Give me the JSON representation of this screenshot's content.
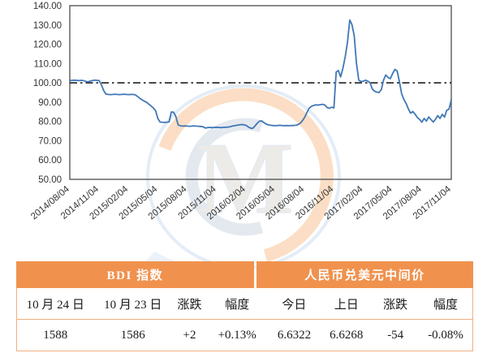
{
  "chart_data": {
    "type": "line",
    "title": "",
    "xlabel": "",
    "ylabel": "",
    "ylim": [
      50,
      140
    ],
    "y_tick_labels": [
      "140.00",
      "130.00",
      "120.00",
      "110.00",
      "100.00",
      "90.00",
      "80.00",
      "70.00",
      "60.00",
      "50.00"
    ],
    "x_tick_labels": [
      "2014/08/04",
      "2014/11/04",
      "2015/02/04",
      "2015/05/04",
      "2015/08/04",
      "2015/11/04",
      "2016/02/04",
      "2016/05/04",
      "2016/08/04",
      "2016/11/04",
      "2017/02/04",
      "2017/05/04",
      "2017/08/04",
      "2017/11/04"
    ],
    "points_per_tick": 13,
    "grid": false,
    "legend": "none",
    "baseline_value": 100,
    "baseline_style": "dash-dot",
    "line_color": "#4077B6",
    "axis_color": "#595959",
    "values": [
      101.2,
      101.3,
      101.4,
      101.3,
      101.2,
      101.3,
      101.2,
      100.8,
      100.5,
      100.9,
      101.2,
      101.4,
      101.3,
      101.2,
      99.0,
      96.0,
      94.2,
      94.0,
      93.9,
      94.0,
      94.1,
      94.0,
      93.9,
      94.0,
      94.1,
      94.0,
      93.9,
      94.0,
      94.0,
      93.8,
      93.0,
      92.0,
      91.2,
      90.5,
      89.9,
      89.0,
      88.0,
      87.0,
      85.6,
      81.5,
      79.7,
      79.6,
      79.5,
      79.6,
      79.8,
      84.9,
      84.8,
      82.5,
      78.2,
      77.7,
      77.6,
      77.7,
      77.6,
      77.5,
      77.6,
      77.7,
      77.6,
      77.5,
      77.4,
      77.3,
      76.6,
      76.8,
      76.9,
      76.8,
      76.9,
      77.0,
      76.9,
      76.8,
      76.9,
      77.0,
      77.1,
      77.3,
      77.6,
      77.8,
      78.0,
      78.2,
      78.4,
      78.3,
      78.0,
      77.2,
      76.6,
      76.4,
      77.6,
      79.0,
      80.1,
      80.3,
      79.4,
      78.6,
      78.2,
      78.0,
      77.9,
      77.8,
      77.9,
      78.0,
      77.9,
      77.8,
      77.9,
      77.8,
      77.9,
      77.9,
      78.0,
      78.3,
      79.0,
      80.3,
      82.0,
      84.5,
      86.8,
      87.8,
      88.3,
      88.6,
      88.5,
      88.7,
      88.9,
      88.5,
      87.2,
      86.8,
      87.4,
      87.0,
      105.6,
      106.4,
      103.1,
      107.6,
      113.5,
      121.0,
      132.6,
      130.2,
      124.5,
      110.0,
      101.4,
      100.7,
      100.8,
      101.4,
      100.9,
      100.1,
      96.8,
      95.7,
      95.2,
      95.0,
      96.5,
      101.5,
      104.1,
      102.8,
      102.2,
      104.8,
      107.0,
      106.2,
      100.8,
      94.4,
      91.4,
      89.3,
      86.4,
      84.3,
      85.1,
      83.7,
      82.0,
      81.0,
      79.6,
      81.6,
      80.2,
      82.3,
      81.0,
      79.7,
      81.1,
      83.0,
      81.6,
      83.7,
      82.3,
      85.8,
      86.4,
      91.2
    ]
  },
  "watermark": {
    "letter": "M"
  },
  "table": {
    "sections": [
      {
        "title": "BDI 指数"
      },
      {
        "title": "人民币兑美元中间价"
      }
    ],
    "columns": [
      "10 月 24 日",
      "10 月 23 日",
      "涨跌",
      "幅度",
      "今日",
      "上日",
      "涨跌",
      "幅度"
    ],
    "values": [
      "1588",
      "1586",
      "+2",
      "+0.13%",
      "6.6322",
      "6.6268",
      "-54",
      "-0.08%"
    ],
    "colors": {
      "header_bg": "#F0924E",
      "header_text": "#FFFFFF",
      "rule": "#F2AE7E",
      "red": "#CF3A3A",
      "green": "#2FA874"
    }
  }
}
